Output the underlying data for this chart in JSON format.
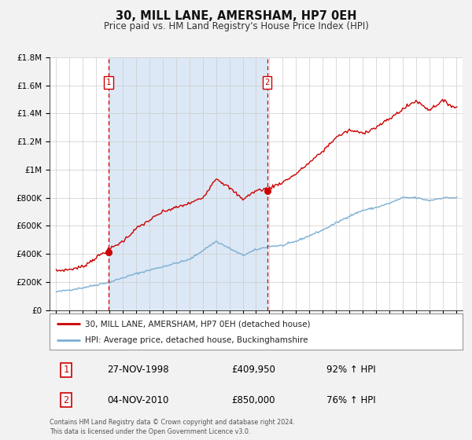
{
  "title": "30, MILL LANE, AMERSHAM, HP7 0EH",
  "subtitle": "Price paid vs. HM Land Registry's House Price Index (HPI)",
  "background_color": "#f2f2f2",
  "plot_bg_color": "#ffffff",
  "shaded_region_color": "#dce8f5",
  "red_line_color": "#cc0000",
  "blue_line_color": "#7bafd4",
  "marker1_year": 1998.92,
  "marker1_value": 409950,
  "marker2_year": 2010.84,
  "marker2_value": 850000,
  "marker1_label": "1",
  "marker2_label": "2",
  "vline_color": "#cc0000",
  "ylim_min": 0,
  "ylim_max": 1800000,
  "ytick_values": [
    0,
    200000,
    400000,
    600000,
    800000,
    1000000,
    1200000,
    1400000,
    1600000,
    1800000
  ],
  "ytick_labels": [
    "£0",
    "£200K",
    "£400K",
    "£600K",
    "£800K",
    "£1M",
    "£1.2M",
    "£1.4M",
    "£1.6M",
    "£1.8M"
  ],
  "xlim_min": 1994.5,
  "xlim_max": 2025.5,
  "xtick_years": [
    1995,
    1996,
    1997,
    1998,
    1999,
    2000,
    2001,
    2002,
    2003,
    2004,
    2005,
    2006,
    2007,
    2008,
    2009,
    2010,
    2011,
    2012,
    2013,
    2014,
    2015,
    2016,
    2017,
    2018,
    2019,
    2020,
    2021,
    2022,
    2023,
    2024,
    2025
  ],
  "legend_entry1": "30, MILL LANE, AMERSHAM, HP7 0EH (detached house)",
  "legend_entry2": "HPI: Average price, detached house, Buckinghamshire",
  "table_row1_num": "1",
  "table_row1_date": "27-NOV-1998",
  "table_row1_price": "£409,950",
  "table_row1_hpi": "92% ↑ HPI",
  "table_row2_num": "2",
  "table_row2_date": "04-NOV-2010",
  "table_row2_price": "£850,000",
  "table_row2_hpi": "76% ↑ HPI",
  "footer": "Contains HM Land Registry data © Crown copyright and database right 2024.\nThis data is licensed under the Open Government Licence v3.0."
}
